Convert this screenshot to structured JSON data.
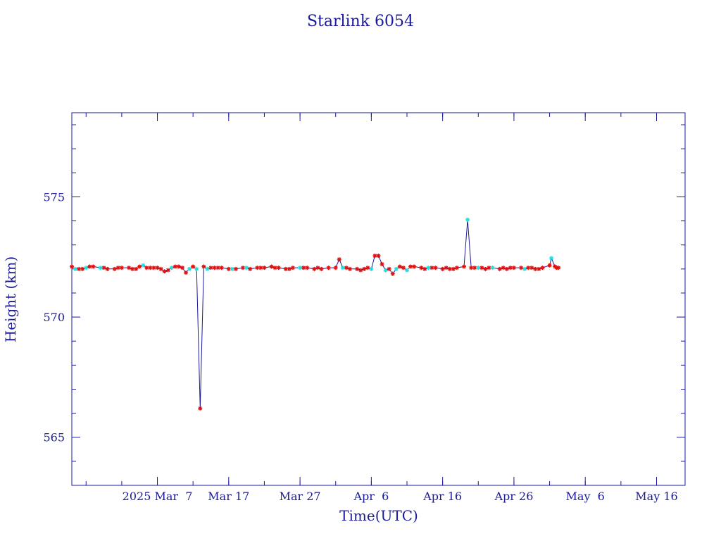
{
  "chart_data": {
    "type": "line",
    "title": "Starlink 6054",
    "xlabel": "Time(UTC)",
    "ylabel": "Height (km)",
    "xlim": [
      "2025-02-23",
      "2025-05-20"
    ],
    "ylim": [
      563,
      578.5
    ],
    "x_ticks": [
      {
        "date": "2025-03-07",
        "label": "2025 Mar  7"
      },
      {
        "date": "2025-03-17",
        "label": "Mar 17"
      },
      {
        "date": "2025-03-27",
        "label": "Mar 27"
      },
      {
        "date": "2025-04-06",
        "label": "Apr  6"
      },
      {
        "date": "2025-04-16",
        "label": "Apr 16"
      },
      {
        "date": "2025-04-26",
        "label": "Apr 26"
      },
      {
        "date": "2025-05-06",
        "label": "May  6"
      },
      {
        "date": "2025-05-16",
        "label": "May 16"
      }
    ],
    "y_ticks": [
      565,
      570,
      575
    ],
    "grid": false,
    "colors": {
      "axis": "#1a1a9a",
      "line": "#1a1a9a",
      "marker_red": "#dd1111",
      "marker_cyan": "#22dddd"
    },
    "series": [
      {
        "points": [
          [
            "2025-02-23",
            572.1,
            "r"
          ],
          [
            "2025-02-23T12",
            572.0,
            "c"
          ],
          [
            "2025-02-24",
            572.0,
            "r"
          ],
          [
            "2025-02-24T12",
            572.0,
            "r"
          ],
          [
            "2025-02-25",
            572.05,
            "c"
          ],
          [
            "2025-02-25T12",
            572.1,
            "r"
          ],
          [
            "2025-02-26",
            572.1,
            "r"
          ],
          [
            "2025-02-27",
            572.05,
            "c"
          ],
          [
            "2025-02-27T12",
            572.05,
            "r"
          ],
          [
            "2025-02-28",
            572.0,
            "r"
          ],
          [
            "2025-03-01",
            572.0,
            "r"
          ],
          [
            "2025-03-01T12",
            572.05,
            "r"
          ],
          [
            "2025-03-02",
            572.05,
            "r"
          ],
          [
            "2025-03-03",
            572.05,
            "r"
          ],
          [
            "2025-03-03T12",
            572.0,
            "r"
          ],
          [
            "2025-03-04",
            572.0,
            "r"
          ],
          [
            "2025-03-04T12",
            572.1,
            "r"
          ],
          [
            "2025-03-05",
            572.15,
            "c"
          ],
          [
            "2025-03-05T12",
            572.05,
            "r"
          ],
          [
            "2025-03-06",
            572.05,
            "r"
          ],
          [
            "2025-03-06T12",
            572.05,
            "r"
          ],
          [
            "2025-03-07",
            572.05,
            "r"
          ],
          [
            "2025-03-07T12",
            572.0,
            "r"
          ],
          [
            "2025-03-08",
            571.9,
            "r"
          ],
          [
            "2025-03-08T12",
            571.95,
            "r"
          ],
          [
            "2025-03-09",
            572.05,
            "c"
          ],
          [
            "2025-03-09T12",
            572.1,
            "r"
          ],
          [
            "2025-03-10",
            572.1,
            "r"
          ],
          [
            "2025-03-10T12",
            572.05,
            "r"
          ],
          [
            "2025-03-11",
            571.85,
            "r"
          ],
          [
            "2025-03-11T12",
            572.0,
            "c"
          ],
          [
            "2025-03-12",
            572.1,
            "r"
          ],
          [
            "2025-03-12T12",
            572.0,
            "c"
          ],
          [
            "2025-03-13",
            566.2,
            "r"
          ],
          [
            "2025-03-13T12",
            572.1,
            "r"
          ],
          [
            "2025-03-14",
            572.0,
            "c"
          ],
          [
            "2025-03-14T12",
            572.05,
            "r"
          ],
          [
            "2025-03-15",
            572.05,
            "r"
          ],
          [
            "2025-03-15T12",
            572.05,
            "r"
          ],
          [
            "2025-03-16",
            572.05,
            "r"
          ],
          [
            "2025-03-17",
            572.0,
            "r"
          ],
          [
            "2025-03-17T12",
            572.0,
            "c"
          ],
          [
            "2025-03-18",
            572.0,
            "r"
          ],
          [
            "2025-03-19",
            572.05,
            "r"
          ],
          [
            "2025-03-19T12",
            572.05,
            "c"
          ],
          [
            "2025-03-20",
            572.0,
            "r"
          ],
          [
            "2025-03-21",
            572.05,
            "r"
          ],
          [
            "2025-03-21T12",
            572.05,
            "r"
          ],
          [
            "2025-03-22",
            572.05,
            "r"
          ],
          [
            "2025-03-23",
            572.1,
            "r"
          ],
          [
            "2025-03-23T12",
            572.05,
            "r"
          ],
          [
            "2025-03-24",
            572.05,
            "r"
          ],
          [
            "2025-03-25",
            572.0,
            "r"
          ],
          [
            "2025-03-25T12",
            572.0,
            "r"
          ],
          [
            "2025-03-26",
            572.05,
            "r"
          ],
          [
            "2025-03-27",
            572.05,
            "c"
          ],
          [
            "2025-03-27T12",
            572.05,
            "r"
          ],
          [
            "2025-03-28",
            572.05,
            "r"
          ],
          [
            "2025-03-29",
            572.0,
            "r"
          ],
          [
            "2025-03-29T12",
            572.05,
            "r"
          ],
          [
            "2025-03-30",
            572.0,
            "r"
          ],
          [
            "2025-03-31",
            572.05,
            "r"
          ],
          [
            "2025-04-01",
            572.05,
            "r"
          ],
          [
            "2025-04-01T12",
            572.4,
            "r"
          ],
          [
            "2025-04-02",
            572.05,
            "c"
          ],
          [
            "2025-04-02T12",
            572.05,
            "r"
          ],
          [
            "2025-04-03",
            572.0,
            "r"
          ],
          [
            "2025-04-04",
            572.0,
            "r"
          ],
          [
            "2025-04-04T12",
            571.95,
            "r"
          ],
          [
            "2025-04-05",
            572.0,
            "r"
          ],
          [
            "2025-04-05T12",
            572.05,
            "r"
          ],
          [
            "2025-04-06",
            572.0,
            "c"
          ],
          [
            "2025-04-06T12",
            572.55,
            "r"
          ],
          [
            "2025-04-07",
            572.55,
            "r"
          ],
          [
            "2025-04-07T12",
            572.2,
            "r"
          ],
          [
            "2025-04-08",
            571.95,
            "c"
          ],
          [
            "2025-04-08T12",
            572.0,
            "r"
          ],
          [
            "2025-04-09",
            571.8,
            "r"
          ],
          [
            "2025-04-09T12",
            572.0,
            "c"
          ],
          [
            "2025-04-10",
            572.1,
            "r"
          ],
          [
            "2025-04-10T12",
            572.05,
            "r"
          ],
          [
            "2025-04-11",
            571.95,
            "c"
          ],
          [
            "2025-04-11T12",
            572.1,
            "r"
          ],
          [
            "2025-04-12",
            572.1,
            "r"
          ],
          [
            "2025-04-13",
            572.05,
            "r"
          ],
          [
            "2025-04-13T12",
            572.0,
            "r"
          ],
          [
            "2025-04-14",
            572.05,
            "c"
          ],
          [
            "2025-04-14T12",
            572.05,
            "r"
          ],
          [
            "2025-04-15",
            572.05,
            "r"
          ],
          [
            "2025-04-16",
            572.0,
            "r"
          ],
          [
            "2025-04-16T12",
            572.05,
            "r"
          ],
          [
            "2025-04-17",
            572.0,
            "r"
          ],
          [
            "2025-04-17T12",
            572.0,
            "r"
          ],
          [
            "2025-04-18",
            572.05,
            "r"
          ],
          [
            "2025-04-19",
            572.1,
            "r"
          ],
          [
            "2025-04-19T12",
            574.05,
            "c"
          ],
          [
            "2025-04-20",
            572.05,
            "r"
          ],
          [
            "2025-04-20T12",
            572.05,
            "r"
          ],
          [
            "2025-04-21",
            572.05,
            "c"
          ],
          [
            "2025-04-21T12",
            572.05,
            "r"
          ],
          [
            "2025-04-22",
            572.0,
            "r"
          ],
          [
            "2025-04-22T12",
            572.05,
            "r"
          ],
          [
            "2025-04-23",
            572.05,
            "c"
          ],
          [
            "2025-04-24",
            572.0,
            "r"
          ],
          [
            "2025-04-24T12",
            572.05,
            "r"
          ],
          [
            "2025-04-25",
            572.0,
            "r"
          ],
          [
            "2025-04-25T12",
            572.05,
            "r"
          ],
          [
            "2025-04-26",
            572.05,
            "r"
          ],
          [
            "2025-04-27",
            572.05,
            "r"
          ],
          [
            "2025-04-27T12",
            572.0,
            "c"
          ],
          [
            "2025-04-28",
            572.05,
            "r"
          ],
          [
            "2025-04-28T12",
            572.05,
            "r"
          ],
          [
            "2025-04-29",
            572.0,
            "r"
          ],
          [
            "2025-04-29T12",
            572.0,
            "r"
          ],
          [
            "2025-04-30",
            572.05,
            "r"
          ],
          [
            "2025-05-01",
            572.15,
            "r"
          ],
          [
            "2025-05-01T06",
            572.45,
            "c"
          ],
          [
            "2025-05-01T18",
            572.1,
            "r"
          ],
          [
            "2025-05-02",
            572.05,
            "r"
          ],
          [
            "2025-05-02T06",
            572.05,
            "r"
          ]
        ]
      }
    ]
  }
}
